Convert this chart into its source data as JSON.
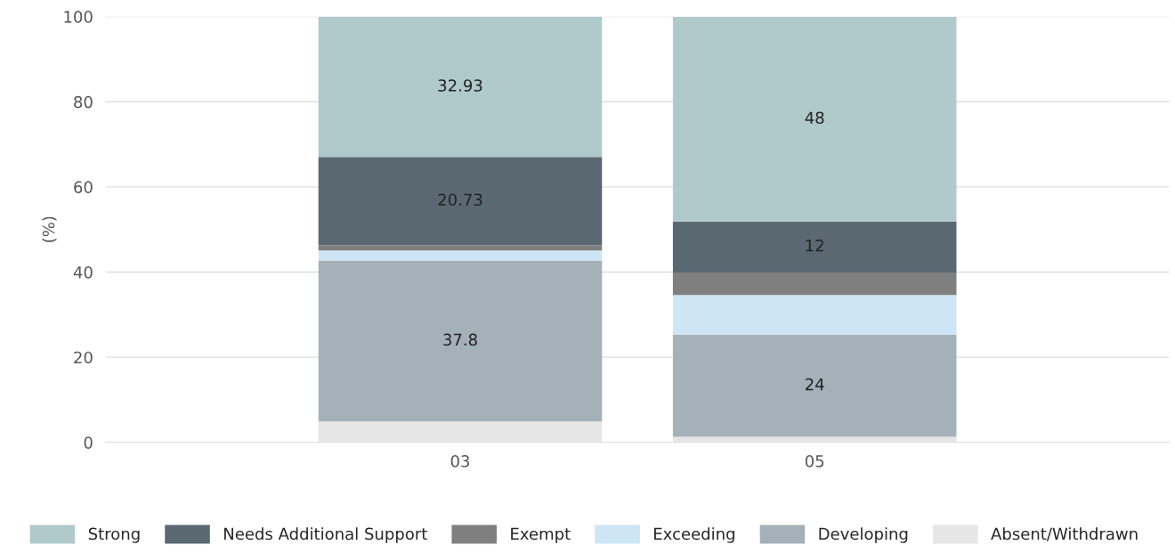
{
  "chart_data": {
    "type": "bar",
    "stacked": true,
    "ylabel": "(%)",
    "categories": [
      "03",
      "05"
    ],
    "series": [
      {
        "name": "Absent/Withdrawn",
        "color": "#e6e6e6",
        "values": [
          4.9,
          1.3
        ],
        "value_labels": [
          null,
          null
        ]
      },
      {
        "name": "Developing",
        "color": "#a5b1b8",
        "values": [
          37.8,
          24
        ],
        "value_labels": [
          "37.8",
          "24"
        ]
      },
      {
        "name": "Exceeding",
        "color": "#cde5f4",
        "values": [
          2.4,
          9.3
        ],
        "value_labels": [
          null,
          null
        ]
      },
      {
        "name": "Exempt",
        "color": "#7f7f7f",
        "values": [
          1.2,
          5.3
        ],
        "value_labels": [
          null,
          null
        ]
      },
      {
        "name": "Needs Additional Support",
        "color": "#5a6872",
        "values": [
          20.73,
          12
        ],
        "value_labels": [
          "20.73",
          "12"
        ]
      },
      {
        "name": "Strong",
        "color": "#b0c9ca",
        "values": [
          32.93,
          48
        ],
        "value_labels": [
          "32.93",
          "48"
        ]
      }
    ],
    "ylim": [
      0,
      100
    ],
    "yticks": [
      0,
      20,
      40,
      60,
      80,
      100
    ],
    "grid": "y",
    "legend": "bottom"
  }
}
